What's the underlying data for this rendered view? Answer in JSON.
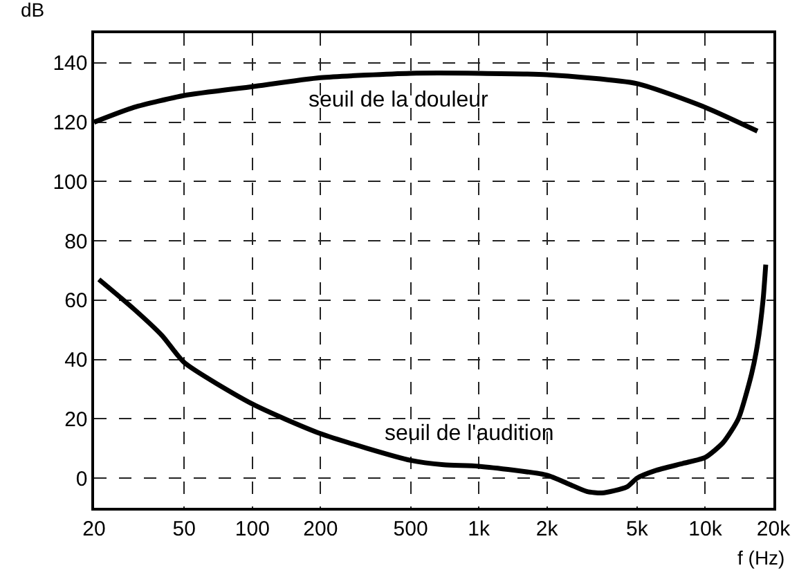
{
  "chart_data": {
    "type": "line",
    "xlabel": "f (Hz)",
    "ylabel": "dB",
    "log": "x",
    "xlim": [
      20,
      20000
    ],
    "xticks": [
      20,
      50,
      100,
      200,
      500,
      {
        "value": 1000,
        "label": "1k"
      },
      {
        "value": 2000,
        "label": "2k"
      },
      {
        "value": 5000,
        "label": "5k"
      },
      {
        "value": 10000,
        "label": "10k"
      },
      {
        "value": 20000,
        "label": "20k"
      }
    ],
    "ylim": [
      -10,
      150
    ],
    "yticks": [
      0,
      20,
      40,
      60,
      80,
      100,
      120,
      140
    ],
    "grid": true,
    "legend": false,
    "line_style": "solid",
    "marker": "none",
    "series": [
      {
        "color": "#000000",
        "x": [
          20,
          30,
          50,
          100,
          200,
          500,
          1000,
          2000,
          5000,
          10000,
          17000
        ],
        "values": [
          120,
          125,
          129,
          132,
          135,
          136.5,
          136.5,
          136,
          133,
          125,
          117
        ]
      },
      {
        "color": "#000000",
        "x": [
          21,
          30,
          40,
          50,
          100,
          200,
          500,
          700,
          1000,
          2000,
          2500,
          3000,
          3500,
          4500,
          5000,
          6000,
          8000,
          10000,
          12000,
          14000,
          16000,
          17000,
          18000,
          18500
        ],
        "values": [
          67,
          57,
          48,
          39,
          25,
          15,
          6,
          4.5,
          4,
          1,
          -2,
          -4.5,
          -5,
          -3,
          0,
          2.5,
          5,
          7,
          12,
          20,
          35,
          45,
          60,
          72
        ]
      }
    ],
    "annotations": [
      "seuil de la douleur",
      "seuil de l'audition"
    ]
  }
}
